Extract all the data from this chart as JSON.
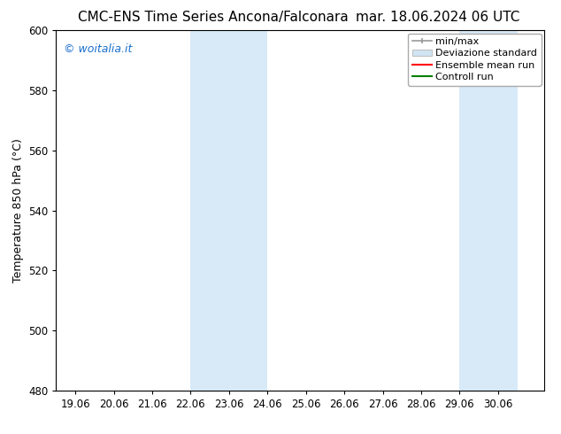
{
  "title_left": "CMC-ENS Time Series Ancona/Falconara",
  "title_right": "mar. 18.06.2024 06 UTC",
  "ylabel": "Temperature 850 hPa (°C)",
  "xlim_start": 18.5,
  "xlim_end": 31.2,
  "ylim_bottom": 480,
  "ylim_top": 600,
  "yticks": [
    480,
    500,
    520,
    540,
    560,
    580,
    600
  ],
  "xtick_labels": [
    "19.06",
    "20.06",
    "21.06",
    "22.06",
    "23.06",
    "24.06",
    "25.06",
    "26.06",
    "27.06",
    "28.06",
    "29.06",
    "30.06"
  ],
  "xtick_positions": [
    19,
    20,
    21,
    22,
    23,
    24,
    25,
    26,
    27,
    28,
    29,
    30
  ],
  "shaded_bands": [
    {
      "x_start": 22.0,
      "x_end": 24.0
    },
    {
      "x_start": 29.0,
      "x_end": 30.5
    }
  ],
  "shaded_color": "#d8eaf8",
  "bg_color": "#ffffff",
  "watermark_text": "© woitalia.it",
  "watermark_color": "#1a6fcc",
  "legend_labels": [
    "min/max",
    "Deviazione standard",
    "Ensemble mean run",
    "Controll run"
  ],
  "legend_colors_line": [
    "#999999",
    "#ccddee",
    "#ff0000",
    "#008000"
  ],
  "title_fontsize": 11,
  "axis_fontsize": 9,
  "tick_fontsize": 8.5,
  "legend_fontsize": 8
}
